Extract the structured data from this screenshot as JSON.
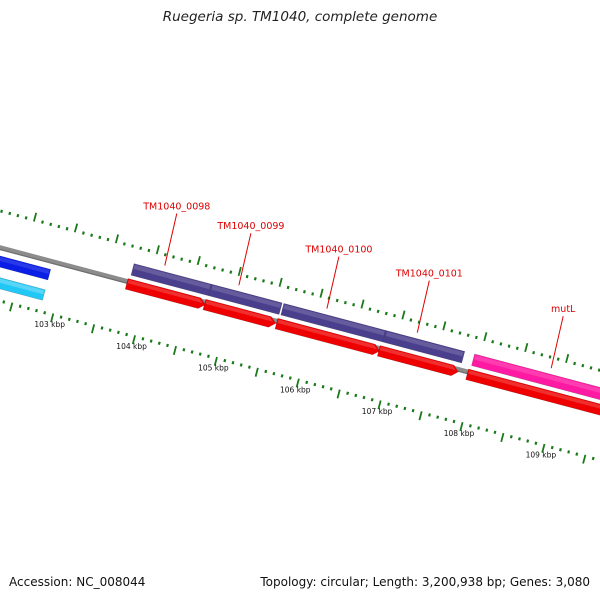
{
  "title": "Ruegeria sp. TM1040, complete genome",
  "footer": {
    "accession": "Accession: NC_008044",
    "topology": "Topology: circular; Length: 3,200,938 bp; Genes: 3,080"
  },
  "colors": {
    "backbone": "#8c8c8c",
    "backbone_dark": "#6e6e6e",
    "tick": "#1a7a1a",
    "label_red": "#dd0000",
    "forward_gene": "#4a3f8c",
    "reverse_cds": "#ee0000",
    "mutL": "#ff1aa3",
    "blue_gene": "#0a1ee6",
    "cyan_gene": "#22c8f5"
  },
  "genes": [
    {
      "name": "TM1040_0098",
      "start_kbp": 103.77,
      "end_kbp": 104.72
    },
    {
      "name": "TM1040_0099",
      "start_kbp": 104.72,
      "end_kbp": 105.58
    },
    {
      "name": "TM1040_0100",
      "start_kbp": 105.6,
      "end_kbp": 106.85
    },
    {
      "name": "TM1040_0101",
      "start_kbp": 106.85,
      "end_kbp": 107.81
    },
    {
      "name": "mutL",
      "start_kbp": 107.93,
      "end_kbp": 110.0
    }
  ],
  "kbp_labels": [
    "103 kbp",
    "104 kbp",
    "105 kbp",
    "106 kbp",
    "107 kbp",
    "108 kbp",
    "109 kbp"
  ]
}
